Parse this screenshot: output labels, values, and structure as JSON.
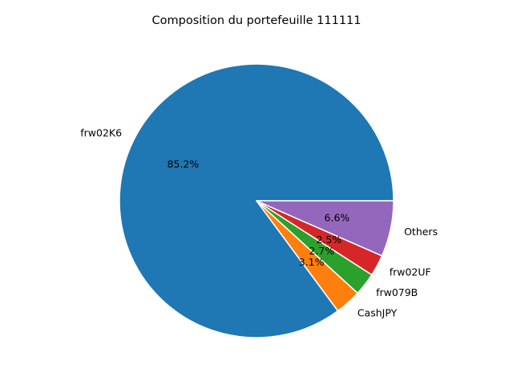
{
  "chart_data": {
    "type": "pie",
    "title": "Composition du portefeuille 111111",
    "slices": [
      {
        "label": "frw02K6",
        "value": 85.2,
        "pct_label": "85.2%",
        "color": "#1f77b4"
      },
      {
        "label": "CashJPY",
        "value": 3.1,
        "pct_label": "3.1%",
        "color": "#ff7f0e"
      },
      {
        "label": "frw079B",
        "value": 2.7,
        "pct_label": "2.7%",
        "color": "#2ca02c"
      },
      {
        "label": "frw02UF",
        "value": 2.5,
        "pct_label": "2.5%",
        "color": "#d62728"
      },
      {
        "label": "Others",
        "value": 6.6,
        "pct_label": "6.6%",
        "color": "#9467bd"
      }
    ],
    "start_angle_deg": 0,
    "direction": "counterclockwise",
    "legend": "none"
  }
}
